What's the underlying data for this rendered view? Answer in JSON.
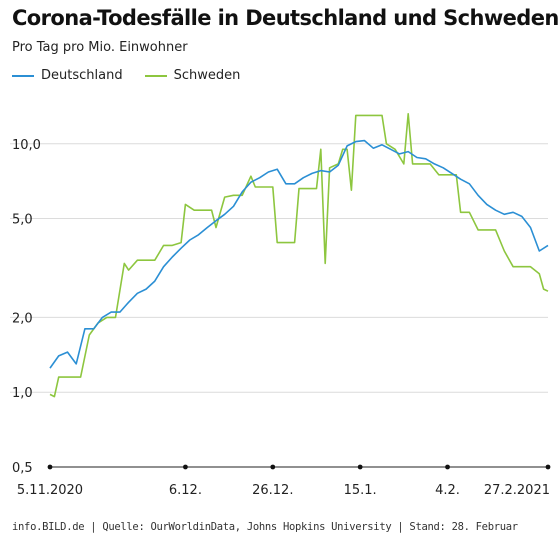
{
  "chart_data": {
    "type": "line",
    "title": "Corona-Todesfälle in Deutschland und Schweden",
    "subtitle": "Pro Tag pro Mio. Einwohner",
    "yscale": "log",
    "ylim": [
      0.5,
      15
    ],
    "yticks": [
      {
        "value": 0.5,
        "label": "0,5"
      },
      {
        "value": 1,
        "label": "1,0"
      },
      {
        "value": 2,
        "label": "2,0"
      },
      {
        "value": 5,
        "label": "5,0"
      },
      {
        "value": 10,
        "label": "10,0"
      }
    ],
    "xlim": [
      "2020-11-05",
      "2021-02-27"
    ],
    "xticks": [
      {
        "date": "2020-11-05",
        "label": "5.11.2020"
      },
      {
        "date": "2020-12-06",
        "label": "6.12."
      },
      {
        "date": "2020-12-26",
        "label": "26.12."
      },
      {
        "date": "2021-01-15",
        "label": "15.1."
      },
      {
        "date": "2021-02-04",
        "label": "4.2."
      },
      {
        "date": "2021-02-27",
        "label": "27.2.2021"
      }
    ],
    "grid": true,
    "legend_position": "top-left",
    "series": [
      {
        "name": "Deutschland",
        "color": "#2b8fd4",
        "points": [
          [
            "2020-11-05",
            1.25
          ],
          [
            "2020-11-07",
            1.4
          ],
          [
            "2020-11-09",
            1.45
          ],
          [
            "2020-11-11",
            1.3
          ],
          [
            "2020-11-13",
            1.8
          ],
          [
            "2020-11-15",
            1.8
          ],
          [
            "2020-11-17",
            2.0
          ],
          [
            "2020-11-19",
            2.1
          ],
          [
            "2020-11-21",
            2.1
          ],
          [
            "2020-11-23",
            2.3
          ],
          [
            "2020-11-25",
            2.5
          ],
          [
            "2020-11-27",
            2.6
          ],
          [
            "2020-11-29",
            2.8
          ],
          [
            "2020-12-01",
            3.2
          ],
          [
            "2020-12-03",
            3.5
          ],
          [
            "2020-12-05",
            3.8
          ],
          [
            "2020-12-07",
            4.1
          ],
          [
            "2020-12-09",
            4.3
          ],
          [
            "2020-12-11",
            4.6
          ],
          [
            "2020-12-13",
            4.9
          ],
          [
            "2020-12-15",
            5.2
          ],
          [
            "2020-12-17",
            5.6
          ],
          [
            "2020-12-19",
            6.4
          ],
          [
            "2020-12-21",
            7.0
          ],
          [
            "2020-12-23",
            7.3
          ],
          [
            "2020-12-25",
            7.7
          ],
          [
            "2020-12-27",
            7.9
          ],
          [
            "2020-12-29",
            6.9
          ],
          [
            "2020-12-31",
            6.9
          ],
          [
            "2021-01-02",
            7.3
          ],
          [
            "2021-01-04",
            7.6
          ],
          [
            "2021-01-06",
            7.8
          ],
          [
            "2021-01-08",
            7.7
          ],
          [
            "2021-01-10",
            8.2
          ],
          [
            "2021-01-12",
            9.8
          ],
          [
            "2021-01-14",
            10.2
          ],
          [
            "2021-01-16",
            10.3
          ],
          [
            "2021-01-18",
            9.6
          ],
          [
            "2021-01-20",
            9.9
          ],
          [
            "2021-01-22",
            9.5
          ],
          [
            "2021-01-24",
            9.1
          ],
          [
            "2021-01-26",
            9.3
          ],
          [
            "2021-01-28",
            8.8
          ],
          [
            "2021-01-30",
            8.7
          ],
          [
            "2021-02-01",
            8.3
          ],
          [
            "2021-02-03",
            8.0
          ],
          [
            "2021-02-05",
            7.6
          ],
          [
            "2021-02-07",
            7.2
          ],
          [
            "2021-02-09",
            6.9
          ],
          [
            "2021-02-11",
            6.2
          ],
          [
            "2021-02-13",
            5.7
          ],
          [
            "2021-02-15",
            5.4
          ],
          [
            "2021-02-17",
            5.2
          ],
          [
            "2021-02-19",
            5.3
          ],
          [
            "2021-02-21",
            5.1
          ],
          [
            "2021-02-23",
            4.6
          ],
          [
            "2021-02-25",
            3.7
          ],
          [
            "2021-02-27",
            3.9
          ]
        ]
      },
      {
        "name": "Schweden",
        "color": "#8dc63f",
        "points": [
          [
            "2020-11-05",
            0.98
          ],
          [
            "2020-11-06",
            0.96
          ],
          [
            "2020-11-07",
            1.15
          ],
          [
            "2020-11-10",
            1.15
          ],
          [
            "2020-11-12",
            1.15
          ],
          [
            "2020-11-14",
            1.7
          ],
          [
            "2020-11-16",
            1.9
          ],
          [
            "2020-11-18",
            2.0
          ],
          [
            "2020-11-20",
            2.0
          ],
          [
            "2020-11-22",
            3.3
          ],
          [
            "2020-11-23",
            3.1
          ],
          [
            "2020-11-25",
            3.4
          ],
          [
            "2020-11-27",
            3.4
          ],
          [
            "2020-11-29",
            3.4
          ],
          [
            "2020-12-01",
            3.9
          ],
          [
            "2020-12-03",
            3.9
          ],
          [
            "2020-12-05",
            4.0
          ],
          [
            "2020-12-06",
            5.7
          ],
          [
            "2020-12-08",
            5.4
          ],
          [
            "2020-12-10",
            5.4
          ],
          [
            "2020-12-12",
            5.4
          ],
          [
            "2020-12-13",
            4.6
          ],
          [
            "2020-12-15",
            6.1
          ],
          [
            "2020-12-17",
            6.2
          ],
          [
            "2020-12-19",
            6.2
          ],
          [
            "2020-12-21",
            7.4
          ],
          [
            "2020-12-22",
            6.7
          ],
          [
            "2020-12-24",
            6.7
          ],
          [
            "2020-12-26",
            6.7
          ],
          [
            "2020-12-27",
            4.0
          ],
          [
            "2020-12-29",
            4.0
          ],
          [
            "2020-12-31",
            4.0
          ],
          [
            "2021-01-01",
            6.6
          ],
          [
            "2021-01-03",
            6.6
          ],
          [
            "2021-01-05",
            6.6
          ],
          [
            "2021-01-06",
            9.5
          ],
          [
            "2021-01-07",
            3.3
          ],
          [
            "2021-01-08",
            8.0
          ],
          [
            "2021-01-10",
            8.3
          ],
          [
            "2021-01-11",
            9.5
          ],
          [
            "2021-01-12",
            9.5
          ],
          [
            "2021-01-13",
            6.5
          ],
          [
            "2021-01-14",
            13.0
          ],
          [
            "2021-01-16",
            13.0
          ],
          [
            "2021-01-18",
            13.0
          ],
          [
            "2021-01-20",
            13.0
          ],
          [
            "2021-01-21",
            10.0
          ],
          [
            "2021-01-23",
            9.5
          ],
          [
            "2021-01-25",
            8.3
          ],
          [
            "2021-01-26",
            13.2
          ],
          [
            "2021-01-27",
            8.3
          ],
          [
            "2021-01-29",
            8.3
          ],
          [
            "2021-01-31",
            8.3
          ],
          [
            "2021-02-02",
            7.5
          ],
          [
            "2021-02-04",
            7.5
          ],
          [
            "2021-02-06",
            7.5
          ],
          [
            "2021-02-07",
            5.3
          ],
          [
            "2021-02-09",
            5.3
          ],
          [
            "2021-02-11",
            4.5
          ],
          [
            "2021-02-13",
            4.5
          ],
          [
            "2021-02-15",
            4.5
          ],
          [
            "2021-02-17",
            3.7
          ],
          [
            "2021-02-19",
            3.2
          ],
          [
            "2021-02-21",
            3.2
          ],
          [
            "2021-02-23",
            3.2
          ],
          [
            "2021-02-25",
            3.0
          ],
          [
            "2021-02-26",
            2.6
          ],
          [
            "2021-02-27",
            2.55
          ]
        ]
      }
    ]
  },
  "footer": {
    "source": "info.BILD.de | Quelle: OurWorldinData, Johns Hopkins University | Stand: 28. Februar"
  }
}
